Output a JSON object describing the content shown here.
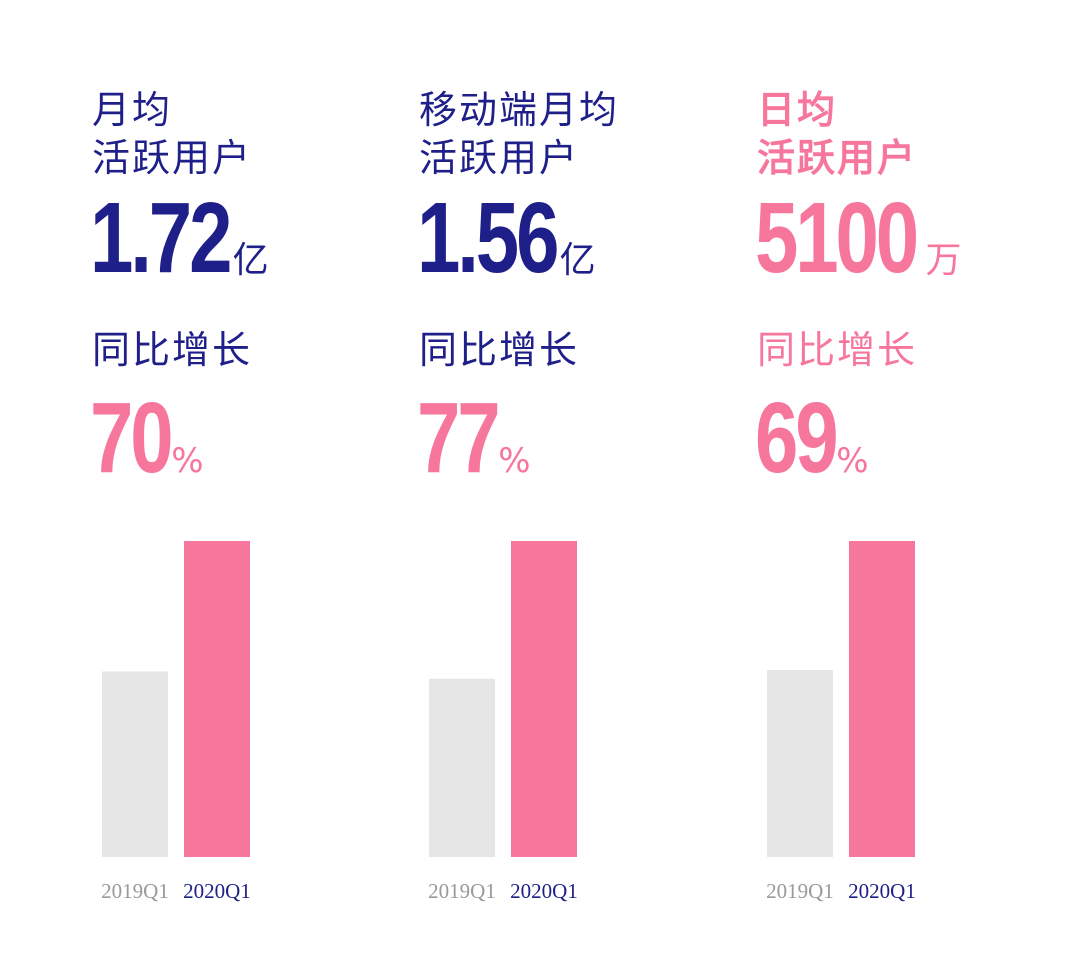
{
  "colors": {
    "navy": "#1f1f8a",
    "pink": "#f7769c",
    "gray_bar": "#e6e6e6",
    "gray_text": "#9a9a9a"
  },
  "panels": [
    {
      "title": "月均\n活跃用户",
      "value": "1.72",
      "unit": "亿",
      "growth_label": "同比增长",
      "growth_value": "70",
      "growth_unit": "%",
      "title_color": "navy",
      "value_color": "navy",
      "growth_label_color": "navy"
    },
    {
      "title": "移动端月均\n活跃用户",
      "value": "1.56",
      "unit": "亿",
      "growth_label": "同比增长",
      "growth_value": "77",
      "growth_unit": "%",
      "title_color": "navy",
      "value_color": "navy",
      "growth_label_color": "navy"
    },
    {
      "title": "日均\n活跃用户",
      "value": "5100",
      "unit": "万",
      "growth_label": "同比增长",
      "growth_value": "69",
      "growth_unit": "%",
      "title_color": "pink",
      "value_color": "pink",
      "growth_label_color": "pink"
    }
  ],
  "chart_data": [
    {
      "type": "bar",
      "categories": [
        "2019Q1",
        "2020Q1"
      ],
      "values": [
        1.01,
        1.72
      ],
      "ylim": [
        0,
        1.72
      ]
    },
    {
      "type": "bar",
      "categories": [
        "2019Q1",
        "2020Q1"
      ],
      "values": [
        0.88,
        1.56
      ],
      "ylim": [
        0,
        1.56
      ]
    },
    {
      "type": "bar",
      "categories": [
        "2019Q1",
        "2020Q1"
      ],
      "values": [
        3018,
        5100
      ],
      "ylim": [
        0,
        5100
      ]
    }
  ]
}
